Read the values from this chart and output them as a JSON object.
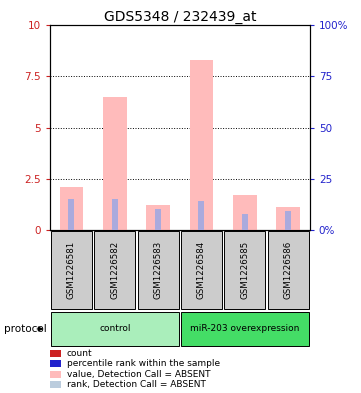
{
  "title": "GDS5348 / 232439_at",
  "samples": [
    "GSM1226581",
    "GSM1226582",
    "GSM1226583",
    "GSM1226584",
    "GSM1226585",
    "GSM1226586"
  ],
  "pink_bar_values": [
    2.1,
    6.5,
    1.2,
    8.3,
    1.7,
    1.1
  ],
  "blue_bar_values": [
    15,
    15,
    10,
    14,
    8,
    9
  ],
  "left_ylim": [
    0,
    10
  ],
  "right_ylim": [
    0,
    100
  ],
  "left_yticks": [
    0,
    2.5,
    5.0,
    7.5,
    10
  ],
  "right_yticks": [
    0,
    25,
    50,
    75,
    100
  ],
  "left_ytick_labels": [
    "0",
    "2.5",
    "5",
    "7.5",
    "10"
  ],
  "right_ytick_labels": [
    "0%",
    "25",
    "50",
    "75",
    "100%"
  ],
  "groups": [
    {
      "label": "control",
      "start": 0,
      "end": 3,
      "color": "#AAEEBB"
    },
    {
      "label": "miR-203 overexpression",
      "start": 3,
      "end": 6,
      "color": "#44DD66"
    }
  ],
  "protocol_label": "protocol",
  "legend_items": [
    {
      "color": "#CC2222",
      "label": "count"
    },
    {
      "color": "#2222CC",
      "label": "percentile rank within the sample"
    },
    {
      "color": "#FFBBBB",
      "label": "value, Detection Call = ABSENT"
    },
    {
      "color": "#BBCCDD",
      "label": "rank, Detection Call = ABSENT"
    }
  ],
  "pink_color": "#FFBBBB",
  "blue_color": "#AAAADD",
  "sample_box_color": "#CCCCCC",
  "background_color": "#FFFFFF",
  "left_axis_color": "#CC2222",
  "right_axis_color": "#2222CC"
}
